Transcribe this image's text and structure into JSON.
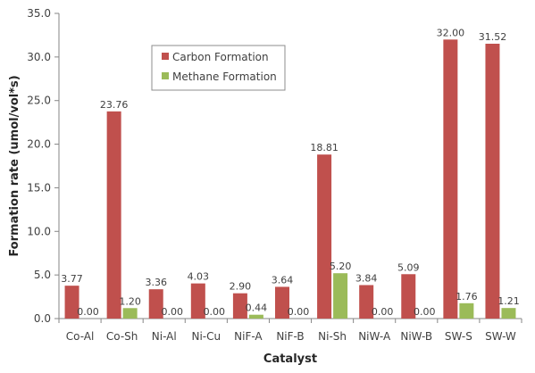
{
  "chart_data": {
    "type": "bar",
    "xlabel": "Catalyst",
    "ylabel": "Formation rate (umol/vol*s)",
    "ylim": [
      0,
      35
    ],
    "yticks": [
      "0.0",
      "5.0",
      "10.0",
      "15.0",
      "20.0",
      "25.0",
      "30.0",
      "35.0"
    ],
    "grid": false,
    "legend_position": "top-left",
    "categories": [
      "Co-Al",
      "Co-Sh",
      "Ni-Al",
      "Ni-Cu",
      "NiF-A",
      "NiF-B",
      "Ni-Sh",
      "NiW-A",
      "NiW-B",
      "SW-S",
      "SW-W"
    ],
    "series": [
      {
        "name": "Carbon Formation",
        "color": "#c0504d",
        "values": [
          3.77,
          23.76,
          3.36,
          4.03,
          2.9,
          3.64,
          18.81,
          3.84,
          5.09,
          32.0,
          31.52
        ],
        "labels": [
          "3.77",
          "23.76",
          "3.36",
          "4.03",
          "2.90",
          "3.64",
          "18.81",
          "3.84",
          "5.09",
          "32.00",
          "31.52"
        ]
      },
      {
        "name": "Methane Formation",
        "color": "#9bbb59",
        "values": [
          0.0,
          1.2,
          0.0,
          0.0,
          0.44,
          0.0,
          5.2,
          0.0,
          0.0,
          1.76,
          1.21
        ],
        "labels": [
          "0.00",
          "1.20",
          "0.00",
          "0.00",
          "0.44",
          "0.00",
          "5.20",
          "0.00",
          "0.00",
          "1.76",
          "1.21"
        ]
      }
    ]
  }
}
